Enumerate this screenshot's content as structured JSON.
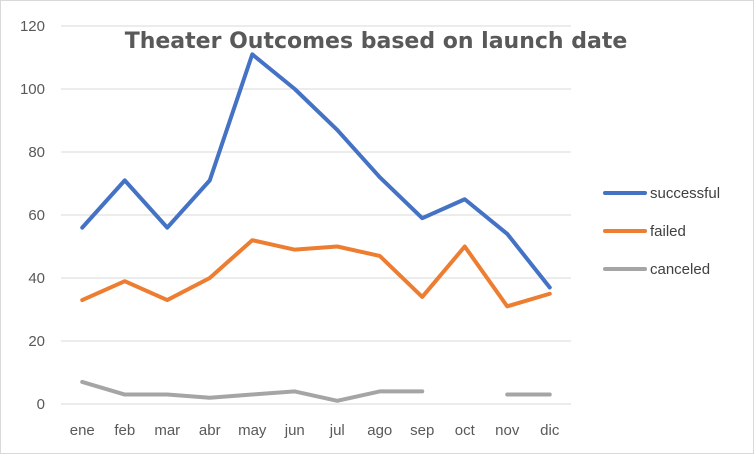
{
  "chart_data": {
    "type": "line",
    "title": "Theater Outcomes based on launch date",
    "xlabel": "",
    "ylabel": "",
    "categories": [
      "ene",
      "feb",
      "mar",
      "abr",
      "may",
      "jun",
      "jul",
      "ago",
      "sep",
      "oct",
      "nov",
      "dic"
    ],
    "ylim": [
      0,
      120
    ],
    "yticks": [
      "0",
      "20",
      "40",
      "60",
      "80",
      "100",
      "120"
    ],
    "grid": true,
    "legend_position": "right",
    "series": [
      {
        "name": "successful",
        "color": "#4472C4",
        "values": [
          56,
          71,
          56,
          71,
          111,
          100,
          87,
          72,
          59,
          65,
          54,
          37
        ]
      },
      {
        "name": "failed",
        "color": "#ED7D31",
        "values": [
          33,
          39,
          33,
          40,
          52,
          49,
          50,
          47,
          34,
          50,
          31,
          35
        ]
      },
      {
        "name": "canceled",
        "color": "#A5A5A5",
        "values": [
          7,
          3,
          3,
          2,
          3,
          4,
          1,
          4,
          4,
          null,
          3,
          3
        ]
      }
    ]
  }
}
